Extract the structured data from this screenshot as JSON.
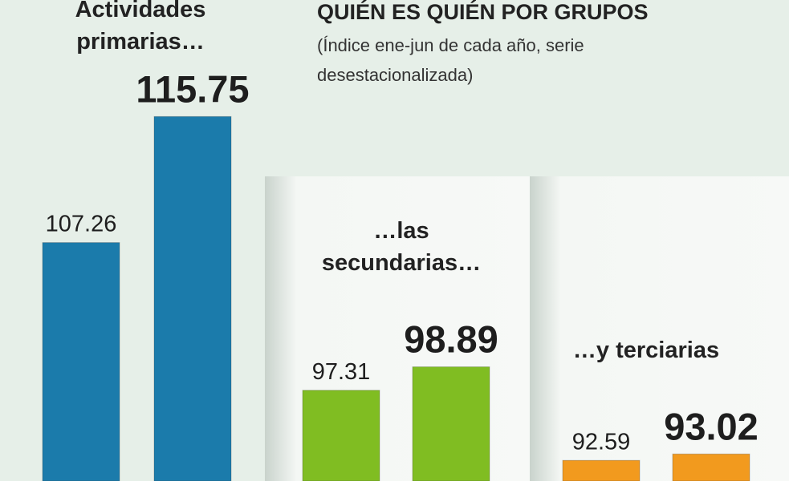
{
  "title": "QUIÉN ES QUIÉN POR GRUPOS",
  "subtitle": "(Índice ene-jun de cada año, serie desestacionalizada)",
  "chart_data": [
    {
      "type": "bar",
      "title": "Actividades primarias…",
      "values": [
        107.26,
        115.75
      ],
      "color": "#1b7bab",
      "ylim": [
        91.2,
        123.6
      ]
    },
    {
      "type": "bar",
      "title": "…las secundarias…",
      "values": [
        97.31,
        98.89
      ],
      "color": "#80bd22",
      "ylim": [
        91.2,
        123.6
      ]
    },
    {
      "type": "bar",
      "title": "…y terciarias",
      "values": [
        92.59,
        93.02
      ],
      "color": "#f29a1e",
      "ylim": [
        91.2,
        123.6
      ]
    }
  ]
}
